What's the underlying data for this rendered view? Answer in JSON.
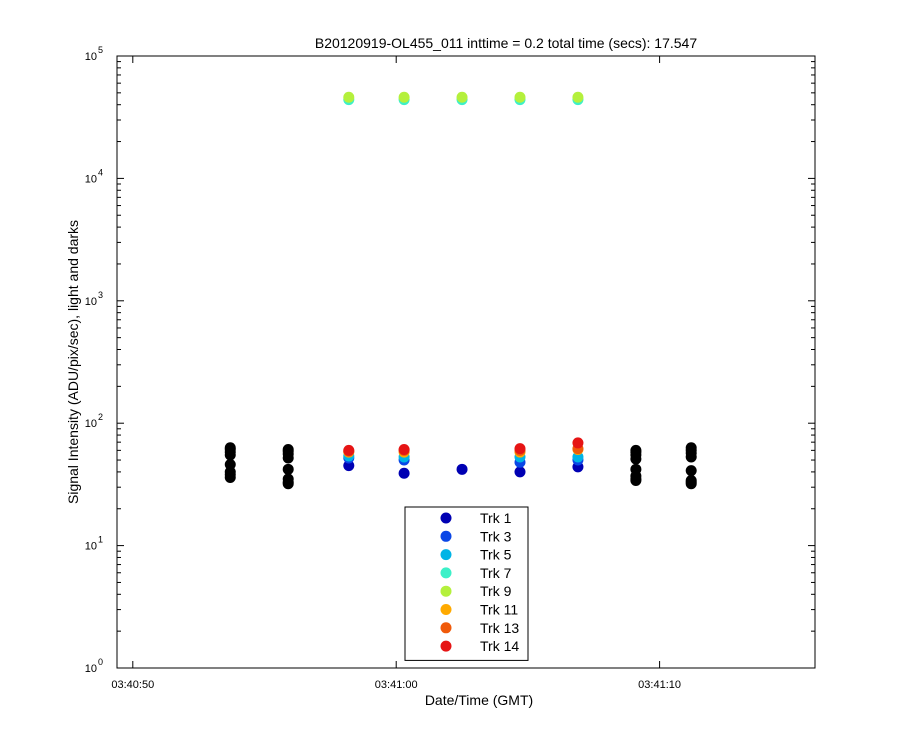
{
  "chart_data": {
    "type": "scatter",
    "title": "B20120919-OL455_011 inttime = 0.2 total time (secs): 17.547",
    "xlabel": "Date/Time (GMT)",
    "ylabel": "Signal Intensity (ADU/pix/sec), light and darks",
    "y_scale": "log",
    "ylim": [
      1,
      100000
    ],
    "xlim": [
      "03:40:49.4",
      "03:41:15.9"
    ],
    "x_ticks": [
      "03:40:50",
      "03:41:00",
      "03:41:10"
    ],
    "y_ticks": [
      {
        "base": "10",
        "exp": "0"
      },
      {
        "base": "10",
        "exp": "1"
      },
      {
        "base": "10",
        "exp": "2"
      },
      {
        "base": "10",
        "exp": "3"
      },
      {
        "base": "10",
        "exp": "4"
      },
      {
        "base": "10",
        "exp": "5"
      }
    ],
    "legend_position": "bottom-center",
    "grid": false,
    "series": [
      {
        "name": "Trk 1",
        "color": "#0000b3",
        "points": [
          [
            "03:40:58.2",
            45
          ],
          [
            "03:41:00.3",
            39
          ],
          [
            "03:41:02.5",
            42
          ],
          [
            "03:41:04.7",
            40
          ],
          [
            "03:41:06.9",
            44
          ]
        ]
      },
      {
        "name": "Trk 3",
        "color": "#0a46e6",
        "points": [
          [
            "03:40:58.2",
            52
          ],
          [
            "03:41:00.3",
            50
          ],
          [
            "03:41:04.7",
            48
          ],
          [
            "03:41:06.9",
            50
          ]
        ]
      },
      {
        "name": "Trk 5",
        "color": "#00b4e6",
        "points": [
          [
            "03:40:58.2",
            54
          ],
          [
            "03:41:00.3",
            53
          ],
          [
            "03:41:04.7",
            53
          ],
          [
            "03:41:06.9",
            53
          ]
        ]
      },
      {
        "name": "Trk 7",
        "color": "#3cf0c8",
        "points": [
          [
            "03:40:58.2",
            44000
          ],
          [
            "03:41:00.3",
            44000
          ],
          [
            "03:41:02.5",
            44000
          ],
          [
            "03:41:04.7",
            44000
          ],
          [
            "03:41:06.9",
            44000
          ]
        ]
      },
      {
        "name": "Trk 9",
        "color": "#b4f03c",
        "points": [
          [
            "03:40:58.2",
            46000
          ],
          [
            "03:41:00.3",
            46000
          ],
          [
            "03:41:02.5",
            46000
          ],
          [
            "03:41:04.7",
            46000
          ],
          [
            "03:41:06.9",
            46000
          ]
        ]
      },
      {
        "name": "Trk 11",
        "color": "#ffaa00",
        "points": [
          [
            "03:40:58.2",
            58
          ],
          [
            "03:41:00.3",
            58
          ],
          [
            "03:41:04.7",
            58
          ],
          [
            "03:41:06.9",
            61
          ]
        ]
      },
      {
        "name": "Trk 13",
        "color": "#f05a0a",
        "points": [
          [
            "03:40:58.2",
            59
          ],
          [
            "03:41:00.3",
            60
          ],
          [
            "03:41:04.7",
            60
          ],
          [
            "03:41:06.9",
            62
          ]
        ]
      },
      {
        "name": "Trk 14",
        "color": "#e61414",
        "points": [
          [
            "03:40:58.2",
            60
          ],
          [
            "03:41:00.3",
            61
          ],
          [
            "03:41:04.7",
            62
          ],
          [
            "03:41:06.9",
            69
          ]
        ]
      },
      {
        "color": "#000000",
        "points": [
          [
            "03:40:53.7",
            36
          ],
          [
            "03:40:53.7",
            38
          ],
          [
            "03:40:53.7",
            40
          ],
          [
            "03:40:53.7",
            46
          ],
          [
            "03:40:53.7",
            55
          ],
          [
            "03:40:53.7",
            58
          ],
          [
            "03:40:53.7",
            61
          ],
          [
            "03:40:53.7",
            63
          ],
          [
            "03:40:55.9",
            32
          ],
          [
            "03:40:55.9",
            33
          ],
          [
            "03:40:55.9",
            35
          ],
          [
            "03:40:55.9",
            42
          ],
          [
            "03:40:55.9",
            52
          ],
          [
            "03:40:55.9",
            56
          ],
          [
            "03:40:55.9",
            59
          ],
          [
            "03:40:55.9",
            61
          ],
          [
            "03:41:09.1",
            34
          ],
          [
            "03:41:09.1",
            35
          ],
          [
            "03:41:09.1",
            37
          ],
          [
            "03:41:09.1",
            42
          ],
          [
            "03:41:09.1",
            51
          ],
          [
            "03:41:09.1",
            55
          ],
          [
            "03:41:09.1",
            58
          ],
          [
            "03:41:09.1",
            60
          ],
          [
            "03:41:11.2",
            32
          ],
          [
            "03:41:11.2",
            33
          ],
          [
            "03:41:11.2",
            34
          ],
          [
            "03:41:11.2",
            41
          ],
          [
            "03:41:11.2",
            53
          ],
          [
            "03:41:11.2",
            57
          ],
          [
            "03:41:11.2",
            60
          ],
          [
            "03:41:11.2",
            63
          ]
        ]
      }
    ]
  }
}
